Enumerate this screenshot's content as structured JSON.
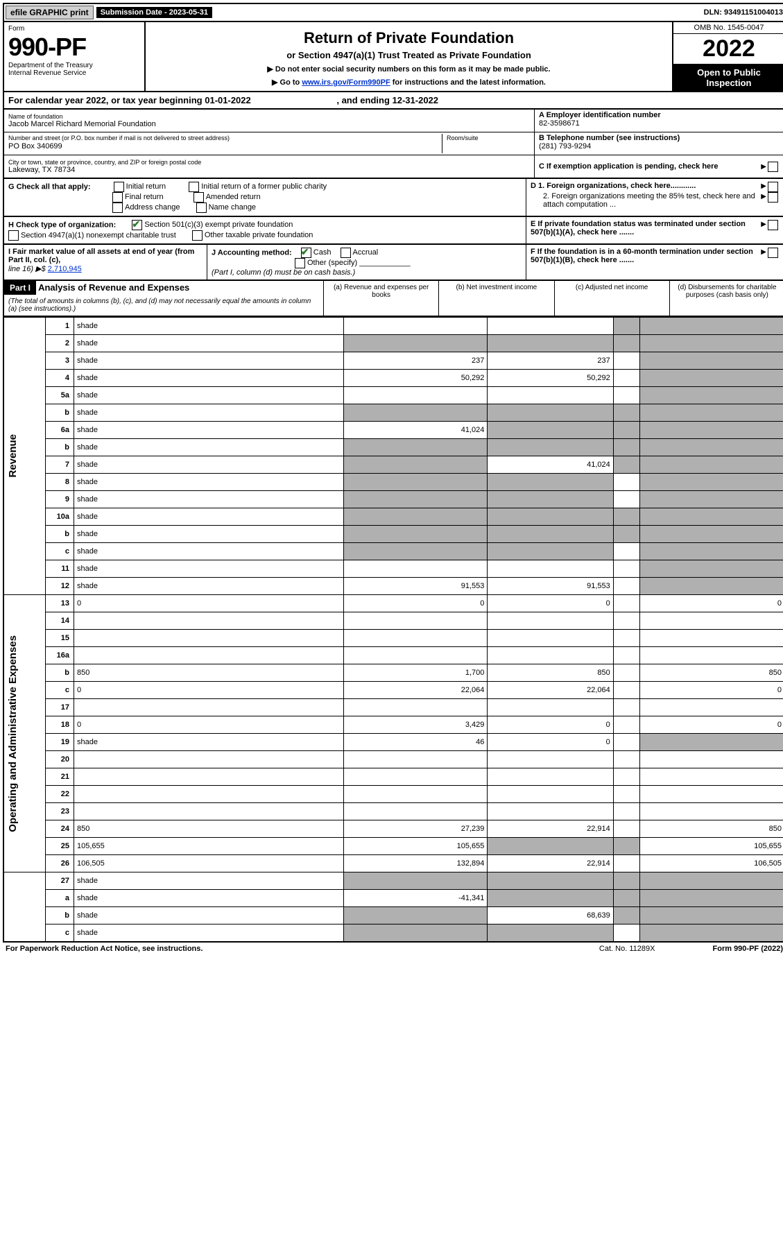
{
  "top": {
    "efile": "efile GRAPHIC print",
    "submission_label": "Submission Date - ",
    "submission_date": "2023-05-31",
    "dln_label": "DLN: ",
    "dln": "93491151004013"
  },
  "header": {
    "form_label": "Form",
    "form_no": "990-PF",
    "dept1": "Department of the Treasury",
    "dept2": "Internal Revenue Service",
    "title": "Return of Private Foundation",
    "subtitle": "or Section 4947(a)(1) Trust Treated as Private Foundation",
    "instr1": "▶ Do not enter social security numbers on this form as it may be made public.",
    "instr2_pre": "▶ Go to ",
    "instr2_link": "www.irs.gov/Form990PF",
    "instr2_post": " for instructions and the latest information.",
    "omb": "OMB No. 1545-0047",
    "year": "2022",
    "inspect": "Open to Public Inspection"
  },
  "cal_year": {
    "pre": "For calendar year 2022, or tax year beginning ",
    "begin": "01-01-2022",
    "mid": " , and ending ",
    "end": "12-31-2022"
  },
  "info": {
    "name_label": "Name of foundation",
    "name": "Jacob Marcel Richard Memorial Foundation",
    "addr_label": "Number and street (or P.O. box number if mail is not delivered to street address)",
    "addr": "PO Box 340699",
    "room_label": "Room/suite",
    "city_label": "City or town, state or province, country, and ZIP or foreign postal code",
    "city": "Lakeway, TX  78734",
    "a_label": "A Employer identification number",
    "a_val": "82-3598671",
    "b_label": "B Telephone number (see instructions)",
    "b_val": "(281) 793-9294",
    "c_label": "C If exemption application is pending, check here"
  },
  "g": {
    "label": "G Check all that apply:",
    "initial": "Initial return",
    "initial_former": "Initial return of a former public charity",
    "final": "Final return",
    "amended": "Amended return",
    "addr_change": "Address change",
    "name_change": "Name change"
  },
  "h": {
    "label": "H Check type of organization:",
    "opt1": "Section 501(c)(3) exempt private foundation",
    "opt2": "Section 4947(a)(1) nonexempt charitable trust",
    "opt3": "Other taxable private foundation"
  },
  "right_d": {
    "d1": "D 1. Foreign organizations, check here............",
    "d2": "2. Foreign organizations meeting the 85% test, check here and attach computation ...",
    "e": "E  If private foundation status was terminated under section 507(b)(1)(A), check here .......",
    "f": "F  If the foundation is in a 60-month termination under section 507(b)(1)(B), check here ......."
  },
  "i": {
    "label": "I Fair market value of all assets at end of year (from Part II, col. (c),",
    "line16": "line 16) ▶$ ",
    "val": "2,710,945"
  },
  "j": {
    "label": "J Accounting method:",
    "cash": "Cash",
    "accrual": "Accrual",
    "other": "Other (specify)",
    "note": "(Part I, column (d) must be on cash basis.)"
  },
  "part1": {
    "tag": "Part I",
    "title": "Analysis of Revenue and Expenses",
    "note": " (The total of amounts in columns (b), (c), and (d) may not necessarily equal the amounts in column (a) (see instructions).)",
    "col_a": "(a) Revenue and expenses per books",
    "col_b": "(b) Net investment income",
    "col_c": "(c) Adjusted net income",
    "col_d": "(d) Disbursements for charitable purposes (cash basis only)"
  },
  "side_labels": {
    "revenue": "Revenue",
    "opex": "Operating and Administrative Expenses"
  },
  "rows": [
    {
      "n": "1",
      "d": "shade",
      "a": "",
      "b": "",
      "c": "shade"
    },
    {
      "n": "2",
      "d": "shade",
      "a": "shade",
      "b": "shade",
      "c": "shade"
    },
    {
      "n": "3",
      "d": "shade",
      "a": "237",
      "b": "237",
      "c": ""
    },
    {
      "n": "4",
      "d": "shade",
      "a": "50,292",
      "b": "50,292",
      "c": ""
    },
    {
      "n": "5a",
      "d": "shade",
      "a": "",
      "b": "",
      "c": ""
    },
    {
      "n": "b",
      "d": "shade",
      "a": "shade",
      "b": "shade",
      "c": "shade"
    },
    {
      "n": "6a",
      "d": "shade",
      "a": "41,024",
      "b": "shade",
      "c": "shade"
    },
    {
      "n": "b",
      "d": "shade",
      "a": "shade",
      "b": "shade",
      "c": "shade"
    },
    {
      "n": "7",
      "d": "shade",
      "a": "shade",
      "b": "41,024",
      "c": "shade"
    },
    {
      "n": "8",
      "d": "shade",
      "a": "shade",
      "b": "shade",
      "c": ""
    },
    {
      "n": "9",
      "d": "shade",
      "a": "shade",
      "b": "shade",
      "c": ""
    },
    {
      "n": "10a",
      "d": "shade",
      "a": "shade",
      "b": "shade",
      "c": "shade"
    },
    {
      "n": "b",
      "d": "shade",
      "a": "shade",
      "b": "shade",
      "c": "shade"
    },
    {
      "n": "c",
      "d": "shade",
      "a": "shade",
      "b": "shade",
      "c": ""
    },
    {
      "n": "11",
      "d": "shade",
      "a": "",
      "b": "",
      "c": ""
    },
    {
      "n": "12",
      "d": "shade",
      "a": "91,553",
      "b": "91,553",
      "c": ""
    }
  ],
  "rows2": [
    {
      "n": "13",
      "d": "0",
      "a": "0",
      "b": "0",
      "c": ""
    },
    {
      "n": "14",
      "d": "",
      "a": "",
      "b": "",
      "c": ""
    },
    {
      "n": "15",
      "d": "",
      "a": "",
      "b": "",
      "c": ""
    },
    {
      "n": "16a",
      "d": "",
      "a": "",
      "b": "",
      "c": ""
    },
    {
      "n": "b",
      "d": "850",
      "a": "1,700",
      "b": "850",
      "c": ""
    },
    {
      "n": "c",
      "d": "0",
      "a": "22,064",
      "b": "22,064",
      "c": ""
    },
    {
      "n": "17",
      "d": "",
      "a": "",
      "b": "",
      "c": ""
    },
    {
      "n": "18",
      "d": "0",
      "a": "3,429",
      "b": "0",
      "c": ""
    },
    {
      "n": "19",
      "d": "shade",
      "a": "46",
      "b": "0",
      "c": ""
    },
    {
      "n": "20",
      "d": "",
      "a": "",
      "b": "",
      "c": ""
    },
    {
      "n": "21",
      "d": "",
      "a": "",
      "b": "",
      "c": ""
    },
    {
      "n": "22",
      "d": "",
      "a": "",
      "b": "",
      "c": ""
    },
    {
      "n": "23",
      "d": "",
      "a": "",
      "b": "",
      "c": ""
    },
    {
      "n": "24",
      "d": "850",
      "a": "27,239",
      "b": "22,914",
      "c": ""
    },
    {
      "n": "25",
      "d": "105,655",
      "a": "105,655",
      "b": "shade",
      "c": "shade"
    },
    {
      "n": "26",
      "d": "106,505",
      "a": "132,894",
      "b": "22,914",
      "c": ""
    }
  ],
  "rows3": [
    {
      "n": "27",
      "d": "shade",
      "a": "shade",
      "b": "shade",
      "c": "shade"
    },
    {
      "n": "a",
      "d": "shade",
      "a": "-41,341",
      "b": "shade",
      "c": "shade"
    },
    {
      "n": "b",
      "d": "shade",
      "a": "shade",
      "b": "68,639",
      "c": "shade"
    },
    {
      "n": "c",
      "d": "shade",
      "a": "shade",
      "b": "shade",
      "c": ""
    }
  ],
  "footer": {
    "left": "For Paperwork Reduction Act Notice, see instructions.",
    "mid": "Cat. No. 11289X",
    "right": "Form 990-PF (2022)"
  }
}
